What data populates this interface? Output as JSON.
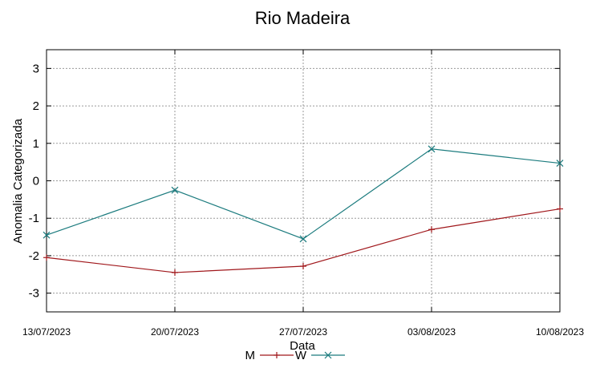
{
  "chart_data": {
    "type": "line",
    "title": "Rio Madeira",
    "xlabel": "Data",
    "ylabel": "Anomalia Categorizada",
    "categories": [
      "13/07/2023",
      "20/07/2023",
      "27/07/2023",
      "03/08/2023",
      "10/08/2023"
    ],
    "yticks": [
      "3",
      "2",
      "1",
      "0",
      "-1",
      "-2",
      "-3"
    ],
    "ylim": [
      -3.5,
      3.5
    ],
    "grid": true,
    "legend_position": "bottom",
    "series": [
      {
        "name": "M",
        "marker": "plus",
        "color": "#a0171b",
        "values": [
          -2.05,
          -2.45,
          -2.28,
          -1.3,
          -0.75
        ]
      },
      {
        "name": "W",
        "marker": "x",
        "color": "#1b7b7e",
        "values": [
          -1.45,
          -0.25,
          -1.55,
          0.85,
          0.47
        ]
      }
    ]
  }
}
